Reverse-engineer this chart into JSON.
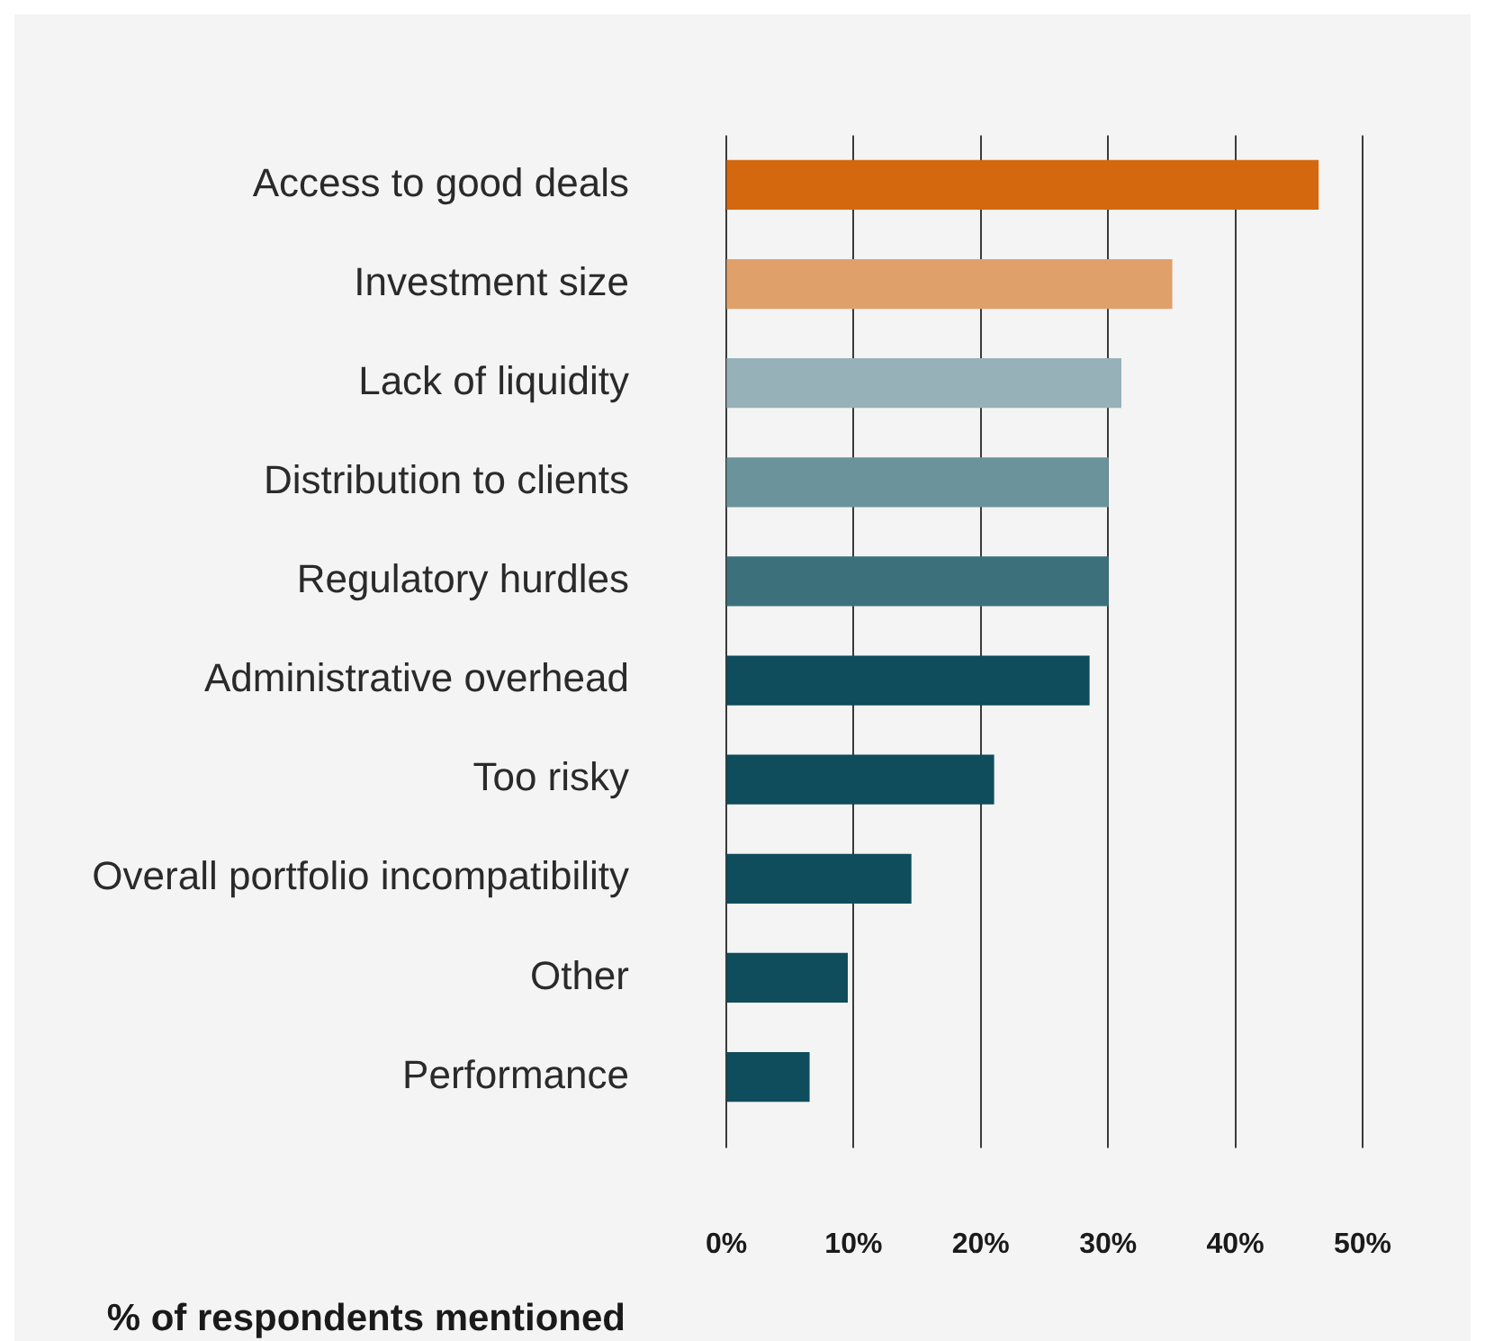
{
  "chart_data": {
    "type": "bar",
    "orientation": "horizontal",
    "xlabel": "% of respondents mentioned",
    "categories": [
      "Access to good deals",
      "Investment size",
      "Lack of liquidity",
      "Distribution to clients",
      "Regulatory hurdles",
      "Administrative overhead",
      "Too risky",
      "Overall portfolio incompatibility",
      "Other",
      "Performance"
    ],
    "values": [
      46.5,
      35,
      31,
      30,
      30,
      28.5,
      21,
      14.5,
      9.5,
      6.5
    ],
    "colors": [
      "#d4680f",
      "#e0a06a",
      "#97b1b9",
      "#6b939c",
      "#3c717c",
      "#0f4c5c",
      "#0f4c5c",
      "#0f4c5c",
      "#0f4c5c",
      "#0f4c5c"
    ],
    "xlim": [
      0,
      50
    ],
    "xticks": [
      {
        "value": 0,
        "label": "0%"
      },
      {
        "value": 10,
        "label": "10%"
      },
      {
        "value": 20,
        "label": "20%"
      },
      {
        "value": 30,
        "label": "30%"
      },
      {
        "value": 40,
        "label": "40%"
      },
      {
        "value": 50,
        "label": "50%"
      }
    ],
    "grid": "x",
    "legend": false
  }
}
